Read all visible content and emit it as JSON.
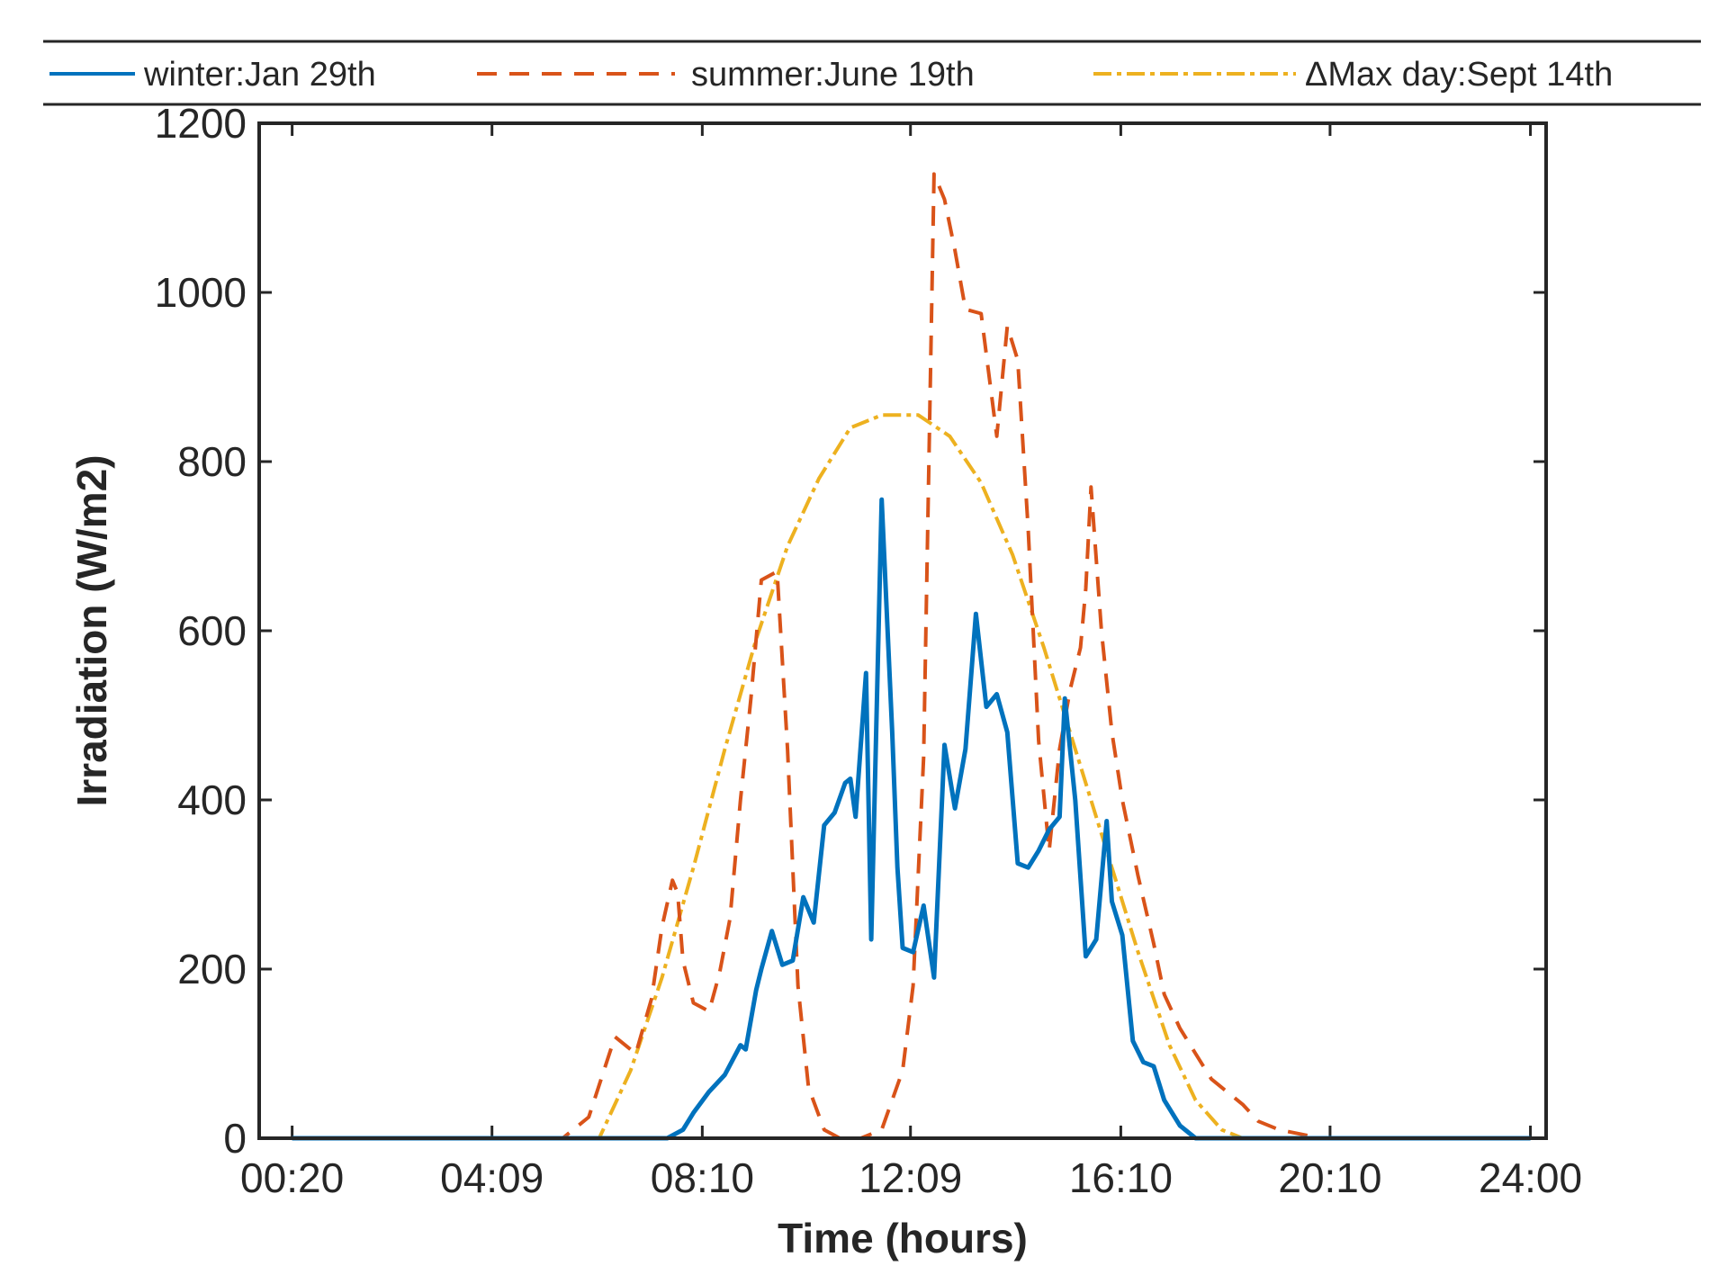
{
  "chart_data": {
    "type": "line",
    "xlabel": "Time (hours)",
    "ylabel": "Irradiation (W/m2)",
    "x_tick_labels": [
      "00:20",
      "04:09",
      "08:10",
      "12:09",
      "16:10",
      "20:10",
      "24:00"
    ],
    "x_tick_hours": [
      0.33,
      4.15,
      8.17,
      12.15,
      16.17,
      20.17,
      24.0
    ],
    "xlim": [
      -0.3,
      24.3
    ],
    "ylim": [
      0,
      1200
    ],
    "y_ticks": [
      0,
      200,
      400,
      600,
      800,
      1000,
      1200
    ],
    "legend_position": "top",
    "series": [
      {
        "name": "winter:Jan 29th",
        "color": "#0072BD",
        "style": "solid",
        "x": [
          0.33,
          7.0,
          7.5,
          7.8,
          8.0,
          8.3,
          8.6,
          8.9,
          9.0,
          9.2,
          9.3,
          9.5,
          9.7,
          9.9,
          10.1,
          10.3,
          10.5,
          10.7,
          10.9,
          11.0,
          11.1,
          11.3,
          11.4,
          11.6,
          11.8,
          11.9,
          12.0,
          12.2,
          12.4,
          12.6,
          12.8,
          13.0,
          13.2,
          13.4,
          13.6,
          13.8,
          14.0,
          14.2,
          14.4,
          14.6,
          14.8,
          15.0,
          15.1,
          15.3,
          15.5,
          15.7,
          15.9,
          16.0,
          16.2,
          16.4,
          16.6,
          16.8,
          17.0,
          17.3,
          17.6,
          24.0
        ],
        "values": [
          0,
          0,
          0,
          10,
          30,
          55,
          75,
          110,
          105,
          175,
          200,
          245,
          205,
          210,
          285,
          255,
          370,
          385,
          420,
          425,
          380,
          550,
          235,
          755,
          480,
          320,
          225,
          220,
          275,
          190,
          465,
          390,
          460,
          620,
          510,
          525,
          480,
          325,
          320,
          340,
          365,
          380,
          520,
          400,
          215,
          235,
          375,
          280,
          240,
          115,
          90,
          85,
          45,
          15,
          0,
          0
        ]
      },
      {
        "name": "summer:June 19th",
        "color": "#D95319",
        "style": "dashed",
        "x": [
          0.33,
          5.5,
          6.0,
          6.5,
          6.9,
          7.2,
          7.4,
          7.6,
          7.7,
          7.8,
          8.0,
          8.3,
          8.5,
          8.7,
          8.9,
          9.1,
          9.3,
          9.6,
          9.8,
          10.0,
          10.2,
          10.5,
          10.8,
          11.2,
          11.6,
          12.0,
          12.2,
          12.4,
          12.6,
          12.7,
          12.8,
          13.0,
          13.2,
          13.5,
          13.8,
          14.0,
          14.2,
          14.4,
          14.6,
          14.8,
          15.0,
          15.2,
          15.4,
          15.5,
          15.6,
          15.8,
          16.0,
          16.2,
          16.5,
          16.8,
          17.0,
          17.3,
          17.6,
          17.9,
          18.2,
          18.5,
          18.8,
          19.2,
          19.6,
          20.0,
          24.0
        ],
        "values": [
          0,
          0,
          25,
          120,
          100,
          165,
          250,
          305,
          290,
          210,
          160,
          150,
          195,
          260,
          400,
          520,
          660,
          670,
          460,
          180,
          60,
          10,
          0,
          0,
          10,
          80,
          180,
          450,
          1140,
          1125,
          1110,
          1050,
          980,
          975,
          830,
          960,
          920,
          720,
          470,
          340,
          460,
          530,
          580,
          650,
          770,
          600,
          480,
          400,
          310,
          230,
          170,
          130,
          100,
          70,
          55,
          40,
          20,
          10,
          5,
          0,
          0
        ]
      },
      {
        "name": "ΔMax day:Sept 14th",
        "color": "#EDB120",
        "style": "dashdot",
        "x": [
          0.33,
          6.2,
          6.8,
          7.4,
          8.0,
          8.6,
          9.2,
          9.8,
          10.4,
          11.0,
          11.6,
          12.3,
          12.9,
          13.5,
          14.1,
          14.7,
          15.3,
          15.9,
          16.5,
          17.1,
          17.6,
          18.1,
          18.5,
          24.0
        ],
        "values": [
          0,
          0,
          80,
          190,
          320,
          460,
          590,
          700,
          780,
          840,
          855,
          855,
          830,
          775,
          690,
          580,
          460,
          340,
          220,
          110,
          45,
          10,
          0,
          0
        ]
      }
    ]
  }
}
